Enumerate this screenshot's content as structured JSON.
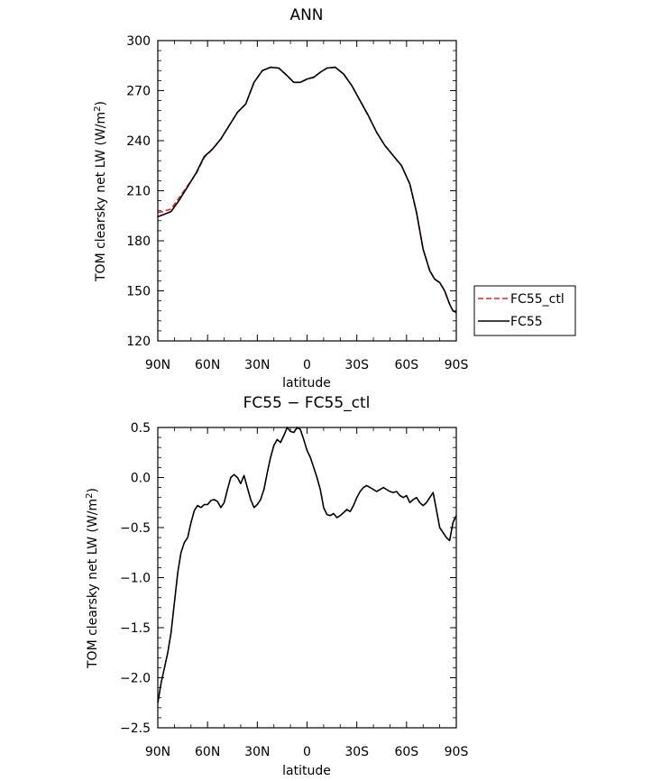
{
  "chart_data": [
    {
      "type": "line",
      "title": "ANN",
      "xlabel": "latitude",
      "ylabel_pre": "TOM clearsky net LW (W/m",
      "ylabel_sup": "2",
      "ylabel_post": ")",
      "ylim": [
        120,
        300
      ],
      "yticks": [
        120,
        150,
        180,
        210,
        240,
        270,
        300
      ],
      "xticks": [
        "90N",
        "60N",
        "30N",
        "0",
        "30S",
        "60S",
        "90S"
      ],
      "xlim": [
        90,
        -90
      ],
      "grid": false,
      "legend": {
        "position": "right",
        "entries": [
          "FC55_ctl",
          "FC55"
        ]
      },
      "series": [
        {
          "name": "FC55_ctl",
          "color": "#e8231e",
          "dash": "dashed",
          "x": [
            90,
            87,
            82,
            77,
            72,
            67,
            62,
            57,
            52,
            47,
            42,
            37,
            32,
            27,
            22,
            17,
            12,
            8,
            4,
            0,
            -4,
            -8,
            -12,
            -17,
            -22,
            -27,
            -32,
            -37,
            -42,
            -47,
            -52,
            -57,
            -62,
            -66,
            -70,
            -74,
            -77,
            -80,
            -83,
            -86,
            -88,
            -90
          ],
          "values": [
            197,
            197.5,
            199,
            206,
            213,
            220,
            230,
            235,
            241,
            249,
            257,
            262,
            275,
            282,
            284,
            283.5,
            279,
            275,
            275,
            277,
            278,
            281,
            283.5,
            284,
            280,
            273,
            264,
            255,
            245,
            237,
            231,
            225,
            214,
            197,
            175,
            162,
            157,
            155,
            150,
            142,
            138,
            137
          ]
        },
        {
          "name": "FC55",
          "color": "#000000",
          "dash": "solid",
          "x": [
            90,
            87,
            82,
            77,
            72,
            67,
            62,
            57,
            52,
            47,
            42,
            37,
            32,
            27,
            22,
            17,
            12,
            8,
            4,
            0,
            -4,
            -8,
            -12,
            -17,
            -22,
            -27,
            -32,
            -37,
            -42,
            -47,
            -52,
            -57,
            -62,
            -66,
            -70,
            -74,
            -77,
            -80,
            -83,
            -86,
            -88,
            -90
          ],
          "values": [
            194.5,
            195.5,
            197.5,
            204.5,
            212.5,
            220.5,
            230.5,
            235,
            241,
            249,
            257,
            262,
            275,
            282,
            284,
            283.5,
            279,
            275,
            275,
            277,
            278,
            281,
            283.5,
            284,
            280,
            273,
            264,
            255,
            245,
            237,
            231,
            225,
            214,
            197,
            175,
            162,
            157,
            155,
            150,
            142,
            138,
            137
          ]
        }
      ]
    },
    {
      "type": "line",
      "title": "FC55 − FC55_ctl",
      "xlabel": "latitude",
      "ylabel_pre": "TOM clearsky net LW (W/m",
      "ylabel_sup": "2",
      "ylabel_post": ")",
      "ylim": [
        -2.5,
        0.5
      ],
      "yticks": [
        -2.5,
        -2.0,
        -1.5,
        -1.0,
        -0.5,
        0.0,
        0.5
      ],
      "ytick_labels": [
        "−2.5",
        "−2.0",
        "−1.5",
        "−1.0",
        "−0.5",
        "0.0",
        "0.5"
      ],
      "xticks": [
        "90N",
        "60N",
        "30N",
        "0",
        "30S",
        "60S",
        "90S"
      ],
      "xlim": [
        90,
        -90
      ],
      "grid": false,
      "series": [
        {
          "color": "#000000",
          "dash": "solid",
          "x": [
            90,
            88,
            86,
            84,
            82,
            80,
            78,
            76,
            74,
            72,
            70,
            68,
            66,
            64,
            62,
            60,
            58,
            56,
            54,
            52,
            50,
            48,
            46,
            44,
            42,
            40,
            38,
            36,
            34,
            32,
            30,
            28,
            26,
            24,
            22,
            20,
            18,
            16,
            14,
            12,
            10,
            8,
            6,
            4,
            2,
            0,
            -2,
            -4,
            -6,
            -8,
            -10,
            -12,
            -14,
            -16,
            -18,
            -20,
            -22,
            -24,
            -26,
            -28,
            -30,
            -32,
            -34,
            -36,
            -38,
            -40,
            -42,
            -44,
            -46,
            -48,
            -50,
            -52,
            -54,
            -56,
            -58,
            -60,
            -62,
            -64,
            -66,
            -68,
            -70,
            -72,
            -74,
            -76,
            -78,
            -80,
            -82,
            -84,
            -86,
            -88,
            -90
          ],
          "values": [
            -2.25,
            -2.05,
            -1.9,
            -1.75,
            -1.55,
            -1.25,
            -0.95,
            -0.75,
            -0.65,
            -0.6,
            -0.45,
            -0.33,
            -0.28,
            -0.3,
            -0.27,
            -0.27,
            -0.23,
            -0.22,
            -0.24,
            -0.3,
            -0.25,
            -0.12,
            0.0,
            0.03,
            0.0,
            -0.06,
            0.02,
            -0.1,
            -0.22,
            -0.3,
            -0.27,
            -0.22,
            -0.12,
            0.05,
            0.2,
            0.32,
            0.38,
            0.35,
            0.42,
            0.5,
            0.46,
            0.45,
            0.5,
            0.48,
            0.38,
            0.27,
            0.2,
            0.1,
            0.0,
            -0.12,
            -0.3,
            -0.37,
            -0.38,
            -0.36,
            -0.4,
            -0.38,
            -0.35,
            -0.32,
            -0.34,
            -0.28,
            -0.2,
            -0.14,
            -0.1,
            -0.08,
            -0.1,
            -0.12,
            -0.14,
            -0.12,
            -0.1,
            -0.12,
            -0.14,
            -0.15,
            -0.14,
            -0.18,
            -0.2,
            -0.18,
            -0.25,
            -0.22,
            -0.2,
            -0.25,
            -0.28,
            -0.25,
            -0.2,
            -0.15,
            -0.32,
            -0.5,
            -0.55,
            -0.6,
            -0.63,
            -0.45,
            -0.38
          ]
        }
      ]
    }
  ]
}
